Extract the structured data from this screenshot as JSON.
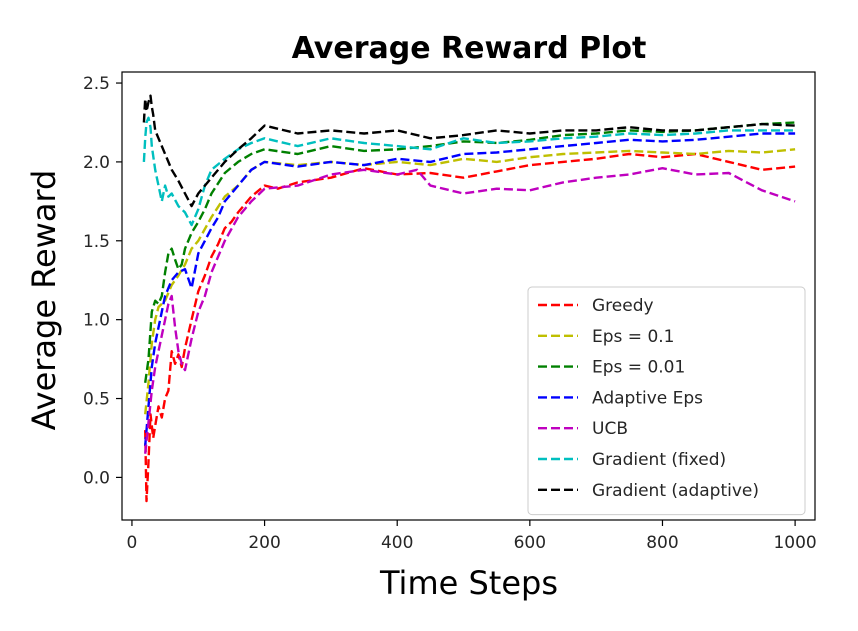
{
  "chart_data": {
    "type": "line",
    "title": "Average Reward Plot",
    "xlabel": "Time Steps",
    "ylabel": "Average Reward",
    "xlim": [
      -15,
      1030
    ],
    "ylim": [
      -0.27,
      2.57
    ],
    "xticks": [
      0,
      200,
      400,
      600,
      800,
      1000
    ],
    "xtick_labels": [
      "0",
      "200",
      "400",
      "600",
      "800",
      "1000"
    ],
    "yticks": [
      0.0,
      0.5,
      1.0,
      1.5,
      2.0,
      2.5
    ],
    "ytick_labels": [
      "0.0",
      "0.5",
      "1.0",
      "1.5",
      "2.0",
      "2.5"
    ],
    "grid": false,
    "legend_position": "lower-right",
    "series": [
      {
        "name": "Greedy",
        "color": "#ff0000",
        "x": [
          20,
          22,
          25,
          28,
          32,
          36,
          40,
          45,
          50,
          55,
          60,
          65,
          70,
          75,
          80,
          90,
          100,
          110,
          120,
          130,
          140,
          150,
          160,
          180,
          200,
          220,
          250,
          300,
          350,
          400,
          450,
          500,
          550,
          600,
          650,
          700,
          750,
          800,
          850,
          900,
          950,
          1000
        ],
        "y": [
          0.3,
          -0.15,
          0.1,
          0.4,
          0.25,
          0.35,
          0.45,
          0.38,
          0.5,
          0.55,
          0.8,
          0.72,
          0.78,
          0.7,
          0.82,
          1.0,
          1.18,
          1.28,
          1.4,
          1.48,
          1.58,
          1.62,
          1.68,
          1.78,
          1.85,
          1.83,
          1.87,
          1.9,
          1.96,
          1.92,
          1.93,
          1.9,
          1.94,
          1.98,
          2.0,
          2.02,
          2.05,
          2.03,
          2.05,
          2.0,
          1.95,
          1.97
        ]
      },
      {
        "name": "Eps = 0.1",
        "color": "#bfbf00",
        "x": [
          20,
          25,
          30,
          35,
          40,
          50,
          60,
          70,
          80,
          90,
          100,
          120,
          140,
          160,
          180,
          200,
          250,
          300,
          350,
          400,
          450,
          500,
          550,
          600,
          650,
          700,
          750,
          800,
          850,
          900,
          950,
          1000
        ],
        "y": [
          0.4,
          0.6,
          0.85,
          1.0,
          1.08,
          1.12,
          1.22,
          1.28,
          1.35,
          1.45,
          1.5,
          1.65,
          1.78,
          1.85,
          1.95,
          2.0,
          1.98,
          2.0,
          1.98,
          2.0,
          1.98,
          2.02,
          2.0,
          2.03,
          2.05,
          2.06,
          2.07,
          2.06,
          2.05,
          2.07,
          2.06,
          2.08
        ]
      },
      {
        "name": "Eps = 0.01",
        "color": "#008000",
        "x": [
          20,
          25,
          30,
          35,
          40,
          45,
          50,
          55,
          60,
          65,
          70,
          75,
          80,
          90,
          100,
          110,
          120,
          140,
          160,
          180,
          200,
          250,
          300,
          350,
          400,
          450,
          500,
          550,
          600,
          650,
          700,
          750,
          800,
          850,
          900,
          950,
          1000
        ],
        "y": [
          0.6,
          0.75,
          1.05,
          1.12,
          1.1,
          1.15,
          1.3,
          1.42,
          1.45,
          1.38,
          1.32,
          1.35,
          1.45,
          1.55,
          1.62,
          1.7,
          1.8,
          1.93,
          2.0,
          2.05,
          2.08,
          2.05,
          2.1,
          2.07,
          2.08,
          2.1,
          2.13,
          2.12,
          2.14,
          2.17,
          2.18,
          2.2,
          2.19,
          2.2,
          2.22,
          2.24,
          2.25
        ]
      },
      {
        "name": "Adaptive Eps",
        "color": "#0000ff",
        "x": [
          20,
          25,
          30,
          35,
          40,
          45,
          50,
          55,
          60,
          70,
          80,
          90,
          100,
          110,
          120,
          130,
          140,
          160,
          180,
          200,
          250,
          300,
          350,
          400,
          450,
          500,
          550,
          600,
          650,
          700,
          750,
          800,
          850,
          900,
          950,
          1000
        ],
        "y": [
          0.2,
          0.45,
          0.7,
          0.85,
          0.95,
          1.05,
          1.15,
          1.2,
          1.25,
          1.3,
          1.32,
          1.2,
          1.42,
          1.5,
          1.58,
          1.65,
          1.75,
          1.85,
          1.95,
          2.0,
          1.97,
          2.0,
          1.98,
          2.02,
          2.0,
          2.05,
          2.06,
          2.08,
          2.1,
          2.12,
          2.14,
          2.13,
          2.14,
          2.16,
          2.18,
          2.18
        ]
      },
      {
        "name": "UCB",
        "color": "#bf00bf",
        "x": [
          20,
          25,
          30,
          35,
          40,
          45,
          50,
          55,
          60,
          65,
          70,
          75,
          80,
          90,
          100,
          110,
          120,
          140,
          160,
          180,
          200,
          250,
          300,
          350,
          400,
          430,
          450,
          500,
          550,
          600,
          650,
          700,
          750,
          800,
          850,
          900,
          950,
          1000
        ],
        "y": [
          0.15,
          0.35,
          0.55,
          0.7,
          0.8,
          0.9,
          1.0,
          1.1,
          1.15,
          0.95,
          0.8,
          0.72,
          0.68,
          0.88,
          1.05,
          1.15,
          1.3,
          1.5,
          1.65,
          1.75,
          1.83,
          1.85,
          1.92,
          1.95,
          1.92,
          1.95,
          1.85,
          1.8,
          1.83,
          1.82,
          1.87,
          1.9,
          1.92,
          1.96,
          1.92,
          1.93,
          1.82,
          1.75
        ]
      },
      {
        "name": "Gradient (fixed)",
        "color": "#00bfbf",
        "x": [
          18,
          20,
          22,
          25,
          28,
          30,
          35,
          40,
          45,
          50,
          55,
          60,
          70,
          80,
          90,
          100,
          110,
          120,
          140,
          160,
          180,
          200,
          250,
          300,
          350,
          400,
          450,
          500,
          550,
          600,
          650,
          700,
          750,
          800,
          850,
          900,
          950,
          1000
        ],
        "y": [
          2.0,
          2.15,
          2.25,
          2.28,
          2.22,
          2.1,
          1.95,
          1.85,
          1.75,
          1.85,
          1.78,
          1.8,
          1.72,
          1.68,
          1.6,
          1.7,
          1.85,
          1.95,
          2.02,
          2.08,
          2.12,
          2.15,
          2.1,
          2.15,
          2.12,
          2.1,
          2.08,
          2.15,
          2.12,
          2.13,
          2.15,
          2.16,
          2.18,
          2.17,
          2.18,
          2.2,
          2.2,
          2.2
        ]
      },
      {
        "name": "Gradient (adaptive)",
        "color": "#000000",
        "x": [
          18,
          20,
          22,
          25,
          28,
          30,
          32,
          35,
          40,
          45,
          50,
          55,
          60,
          70,
          80,
          90,
          100,
          110,
          120,
          140,
          160,
          180,
          200,
          250,
          300,
          350,
          400,
          450,
          500,
          550,
          600,
          650,
          700,
          750,
          800,
          850,
          900,
          950,
          1000
        ],
        "y": [
          2.25,
          2.4,
          2.32,
          2.38,
          2.42,
          2.35,
          2.3,
          2.2,
          2.15,
          2.1,
          2.05,
          2.0,
          1.95,
          1.88,
          1.8,
          1.72,
          1.8,
          1.85,
          1.9,
          2.0,
          2.08,
          2.15,
          2.23,
          2.18,
          2.2,
          2.18,
          2.2,
          2.15,
          2.17,
          2.2,
          2.18,
          2.2,
          2.2,
          2.22,
          2.2,
          2.2,
          2.22,
          2.24,
          2.23
        ]
      }
    ]
  }
}
